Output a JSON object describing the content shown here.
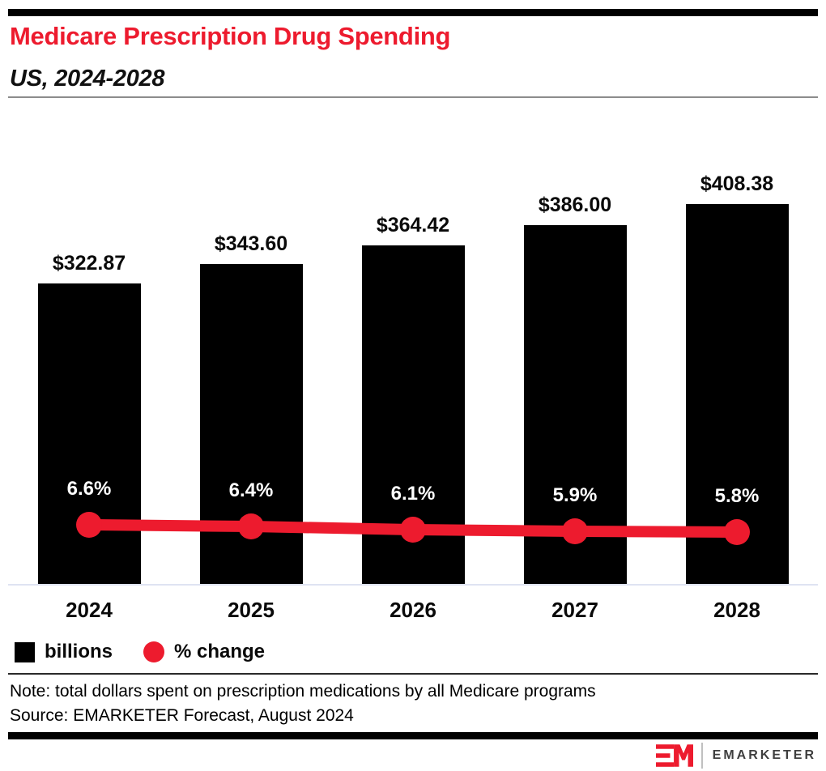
{
  "header": {
    "title": "Medicare Prescription Drug Spending",
    "subtitle": "US, 2024-2028",
    "title_color": "#ed1b2e",
    "top_bar_color": "#000000"
  },
  "chart_data": {
    "type": "combo_bar_line",
    "title": "Medicare Prescription Drug Spending",
    "subtitle": "US, 2024-2028",
    "categories": [
      "2024",
      "2025",
      "2026",
      "2027",
      "2028"
    ],
    "series": [
      {
        "name": "billions",
        "type": "bar",
        "color": "#000000",
        "values": [
          322.87,
          343.6,
          364.42,
          386.0,
          408.38
        ],
        "labels": [
          "$322.87",
          "$343.60",
          "$364.42",
          "$386.00",
          "$408.38"
        ]
      },
      {
        "name": "% change",
        "type": "line",
        "color": "#ed1b2e",
        "values": [
          6.6,
          6.4,
          6.1,
          5.9,
          5.8
        ],
        "labels": [
          "6.6%",
          "6.4%",
          "6.1%",
          "5.9%",
          "5.8%"
        ]
      }
    ],
    "value_axis_unit": "billions of US dollars",
    "grid": false,
    "legend_position": "bottom-left"
  },
  "legend": {
    "items": [
      {
        "label": "billions",
        "swatch": "black-square",
        "color": "#000000"
      },
      {
        "label": "% change",
        "swatch": "red-circle",
        "color": "#ed1b2e"
      }
    ]
  },
  "footnotes": {
    "note": "Note: total dollars spent on prescription medications by all Medicare programs",
    "source": "Source: EMARKETER Forecast, August 2024"
  },
  "footer": {
    "logo_monogram": "EM",
    "logo_wordmark": "EMARKETER",
    "logo_color": "#ed1b2e",
    "wordmark_color": "#3f3f3f"
  }
}
